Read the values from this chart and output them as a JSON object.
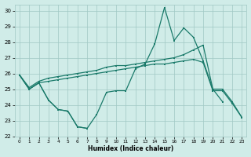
{
  "line_spiky_x": [
    0,
    1,
    2,
    3,
    4,
    5,
    6,
    7,
    8,
    9,
    10,
    11,
    12,
    13,
    14,
    15,
    16,
    17,
    18,
    19,
    20,
    21
  ],
  "line_spiky_y": [
    25.9,
    25.0,
    25.4,
    24.3,
    23.7,
    23.6,
    22.6,
    22.5,
    23.4,
    24.8,
    24.9,
    24.9,
    26.3,
    26.6,
    27.9,
    30.2,
    28.1,
    28.9,
    28.3,
    26.8,
    25.0,
    24.2
  ],
  "line_upper_x": [
    0,
    1,
    2,
    3,
    4,
    5,
    6,
    7,
    8,
    9,
    10,
    11,
    12,
    13,
    14,
    15,
    16,
    17,
    18,
    19,
    20,
    21,
    22,
    23
  ],
  "line_upper_y": [
    25.9,
    25.1,
    25.5,
    25.7,
    25.8,
    25.9,
    26.0,
    26.1,
    26.2,
    26.4,
    26.5,
    26.5,
    26.6,
    26.7,
    26.8,
    26.9,
    27.0,
    27.2,
    27.5,
    27.8,
    25.0,
    25.0,
    24.2,
    23.2
  ],
  "line_lower_x": [
    0,
    1,
    2,
    3,
    4,
    5,
    6,
    7,
    8,
    9,
    10,
    11,
    12,
    13,
    14,
    15,
    16,
    17,
    18,
    19,
    20,
    21,
    22,
    23
  ],
  "line_lower_y": [
    25.9,
    25.0,
    25.4,
    25.5,
    25.6,
    25.7,
    25.8,
    25.9,
    26.0,
    26.1,
    26.2,
    26.3,
    26.4,
    26.5,
    26.6,
    26.6,
    26.7,
    26.8,
    26.9,
    26.7,
    24.9,
    24.9,
    24.1,
    23.2
  ],
  "line_dip_x": [
    0,
    1,
    2,
    3,
    4,
    5,
    6,
    7
  ],
  "line_dip_y": [
    25.9,
    25.0,
    25.4,
    24.3,
    23.7,
    23.6,
    22.6,
    22.5
  ],
  "color": "#1a7a6a",
  "bg_color": "#d0ece8",
  "grid_color": "#a0c8c4",
  "xlabel": "Humidex (Indice chaleur)",
  "ylim": [
    22,
    30.4
  ],
  "xlim": [
    -0.5,
    23.5
  ],
  "yticks": [
    22,
    23,
    24,
    25,
    26,
    27,
    28,
    29,
    30
  ],
  "xticks": [
    0,
    1,
    2,
    3,
    4,
    5,
    6,
    7,
    8,
    9,
    10,
    11,
    12,
    13,
    14,
    15,
    16,
    17,
    18,
    19,
    20,
    21,
    22,
    23
  ]
}
